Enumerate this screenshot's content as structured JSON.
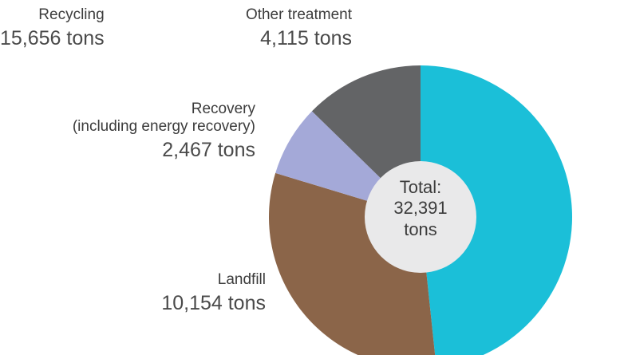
{
  "chart_data": {
    "type": "donut",
    "categories": [
      "Recycling",
      "Landfill",
      "Recovery\n(including energy recovery)",
      "Other treatment"
    ],
    "values": [
      15656,
      10154,
      2467,
      4115
    ],
    "value_labels": [
      "15,656 tons",
      "10,154 tons",
      "2,467 tons",
      "4,115 tons"
    ],
    "colors": [
      "#1bbfd8",
      "#8b6549",
      "#a4a9d8",
      "#636466"
    ],
    "center_text": [
      "Total:",
      "32,391",
      "tons"
    ]
  }
}
